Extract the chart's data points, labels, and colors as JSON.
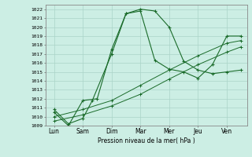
{
  "title": "",
  "xlabel": "Pression niveau de la mer( hPa )",
  "ylabel": "",
  "bg_color": "#cceee4",
  "grid_color": "#aad4c8",
  "line_color": "#1a6b2a",
  "ylim": [
    1009,
    1022.5
  ],
  "yticks": [
    1009,
    1010,
    1011,
    1012,
    1013,
    1014,
    1015,
    1016,
    1017,
    1018,
    1019,
    1020,
    1021,
    1022
  ],
  "x_labels": [
    "Lun",
    "Sam",
    "Dim",
    "Mar",
    "Mer",
    "Jeu",
    "Ven"
  ],
  "x_positions": [
    0,
    1,
    2,
    3,
    4,
    5,
    6
  ],
  "xlim": [
    -0.3,
    6.7
  ],
  "line1_x": [
    0,
    0.5,
    1,
    1.33,
    2,
    2.5,
    3,
    3.5,
    4,
    4.5,
    5,
    5.5,
    6,
    6.5
  ],
  "line1_y": [
    1010.8,
    1009.2,
    1009.8,
    1011.8,
    1017.0,
    1021.5,
    1022.0,
    1021.8,
    1020.0,
    1016.2,
    1015.2,
    1014.8,
    1015.0,
    1015.2
  ],
  "line2_x": [
    0,
    0.5,
    1,
    1.5,
    2,
    2.5,
    3,
    3.5,
    4,
    4.5,
    5,
    5.5,
    6,
    6.5
  ],
  "line2_y": [
    1010.5,
    1009.0,
    1011.8,
    1012.0,
    1017.5,
    1021.5,
    1021.8,
    1016.3,
    1015.3,
    1015.0,
    1014.3,
    1015.8,
    1019.0,
    1019.0
  ],
  "line3_x": [
    0,
    1,
    2,
    3,
    4,
    5,
    6,
    6.5
  ],
  "line3_y": [
    1010.0,
    1010.8,
    1011.8,
    1013.5,
    1015.2,
    1016.8,
    1018.2,
    1018.5
  ],
  "line4_x": [
    0,
    1,
    2,
    3,
    4,
    5,
    6,
    6.5
  ],
  "line4_y": [
    1009.5,
    1010.2,
    1011.2,
    1012.5,
    1014.2,
    1015.8,
    1017.2,
    1017.8
  ],
  "marker": "+"
}
